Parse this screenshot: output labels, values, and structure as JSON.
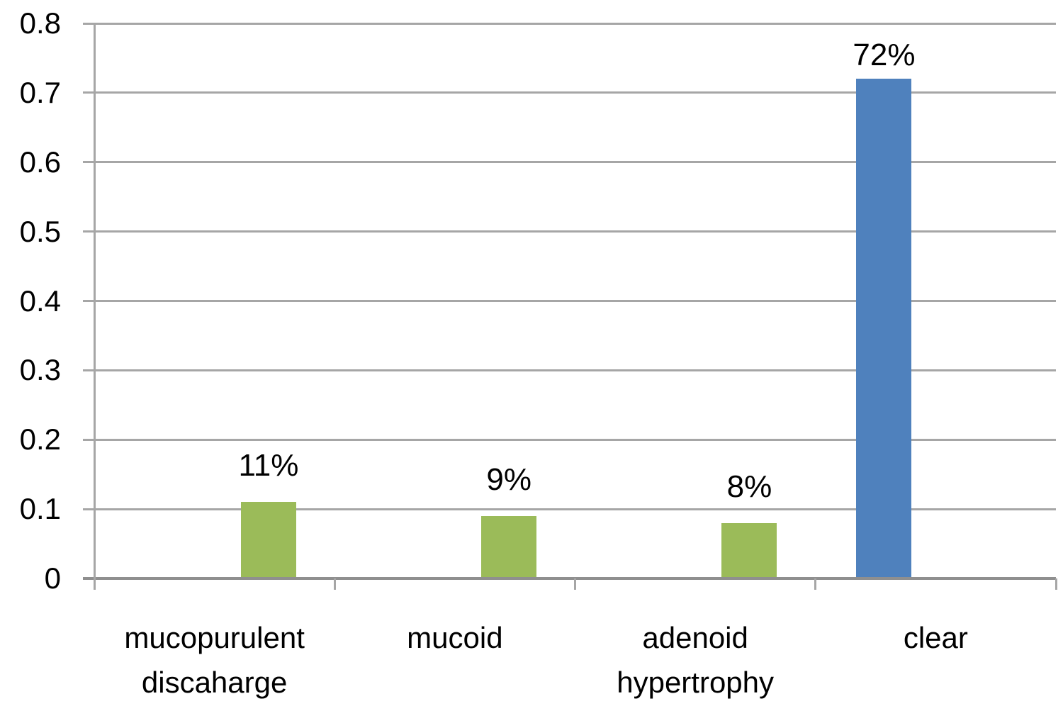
{
  "chart_data": {
    "type": "bar",
    "title": "",
    "xlabel": "",
    "ylabel": "",
    "categories": [
      "mucopurulent discaharge",
      "mucoid",
      "adenoid hypertrophy",
      "clear"
    ],
    "categories_lines": [
      [
        "mucopurulent",
        "discaharge"
      ],
      [
        "mucoid"
      ],
      [
        "adenoid",
        "hypertrophy"
      ],
      [
        "clear"
      ]
    ],
    "series": [
      {
        "name": "series-blue",
        "color": "#4f81bd",
        "values": [
          null,
          null,
          null,
          0.72
        ],
        "labels": [
          null,
          null,
          null,
          "72%"
        ]
      },
      {
        "name": "series-green",
        "color": "#9bbb59",
        "values": [
          0.11,
          0.09,
          0.08,
          null
        ],
        "labels": [
          "11%",
          "9%",
          "8%",
          null
        ]
      }
    ],
    "ylim": [
      0,
      0.8
    ],
    "ytick_step": 0.1,
    "yticks": [
      "0.8",
      "0.7",
      "0.6",
      "0.5",
      "0.4",
      "0.3",
      "0.2",
      "0.1",
      "0"
    ],
    "grid": true,
    "legend": "none",
    "colors": {
      "gridline": "#a6a6a6",
      "axis_line": "#a6a6a6",
      "baseline": "#8f8f8f",
      "text": "#000000",
      "background": "#ffffff"
    }
  }
}
